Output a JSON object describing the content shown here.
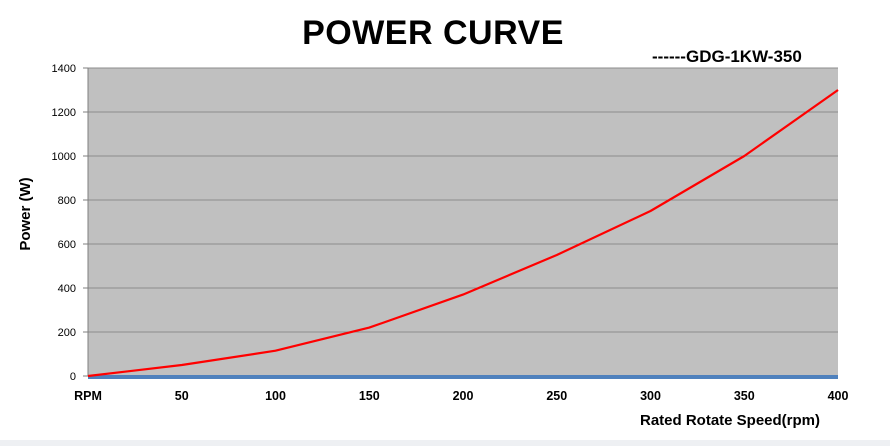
{
  "chart_data": {
    "type": "line",
    "title": "POWER CURVE",
    "legend_text": "------GDG-1KW-350",
    "xlabel": "Rated Rotate Speed(rpm)",
    "ylabel": "Power (W)",
    "x_tick_labels": [
      "RPM",
      "50",
      "100",
      "150",
      "200",
      "250",
      "300",
      "350",
      "400"
    ],
    "y_ticks": [
      0,
      200,
      400,
      600,
      800,
      1000,
      1200,
      1400
    ],
    "xlim": [
      0,
      400
    ],
    "ylim": [
      0,
      1400
    ],
    "grid": "horizontal",
    "plot_background": "#c0c0c0",
    "series": [
      {
        "color": "#ff0000",
        "x": [
          0,
          50,
          100,
          150,
          200,
          250,
          300,
          350,
          400
        ],
        "y": [
          0,
          50,
          115,
          220,
          370,
          550,
          750,
          1000,
          1300
        ]
      }
    ],
    "baseline_color": "#4f81bd"
  }
}
